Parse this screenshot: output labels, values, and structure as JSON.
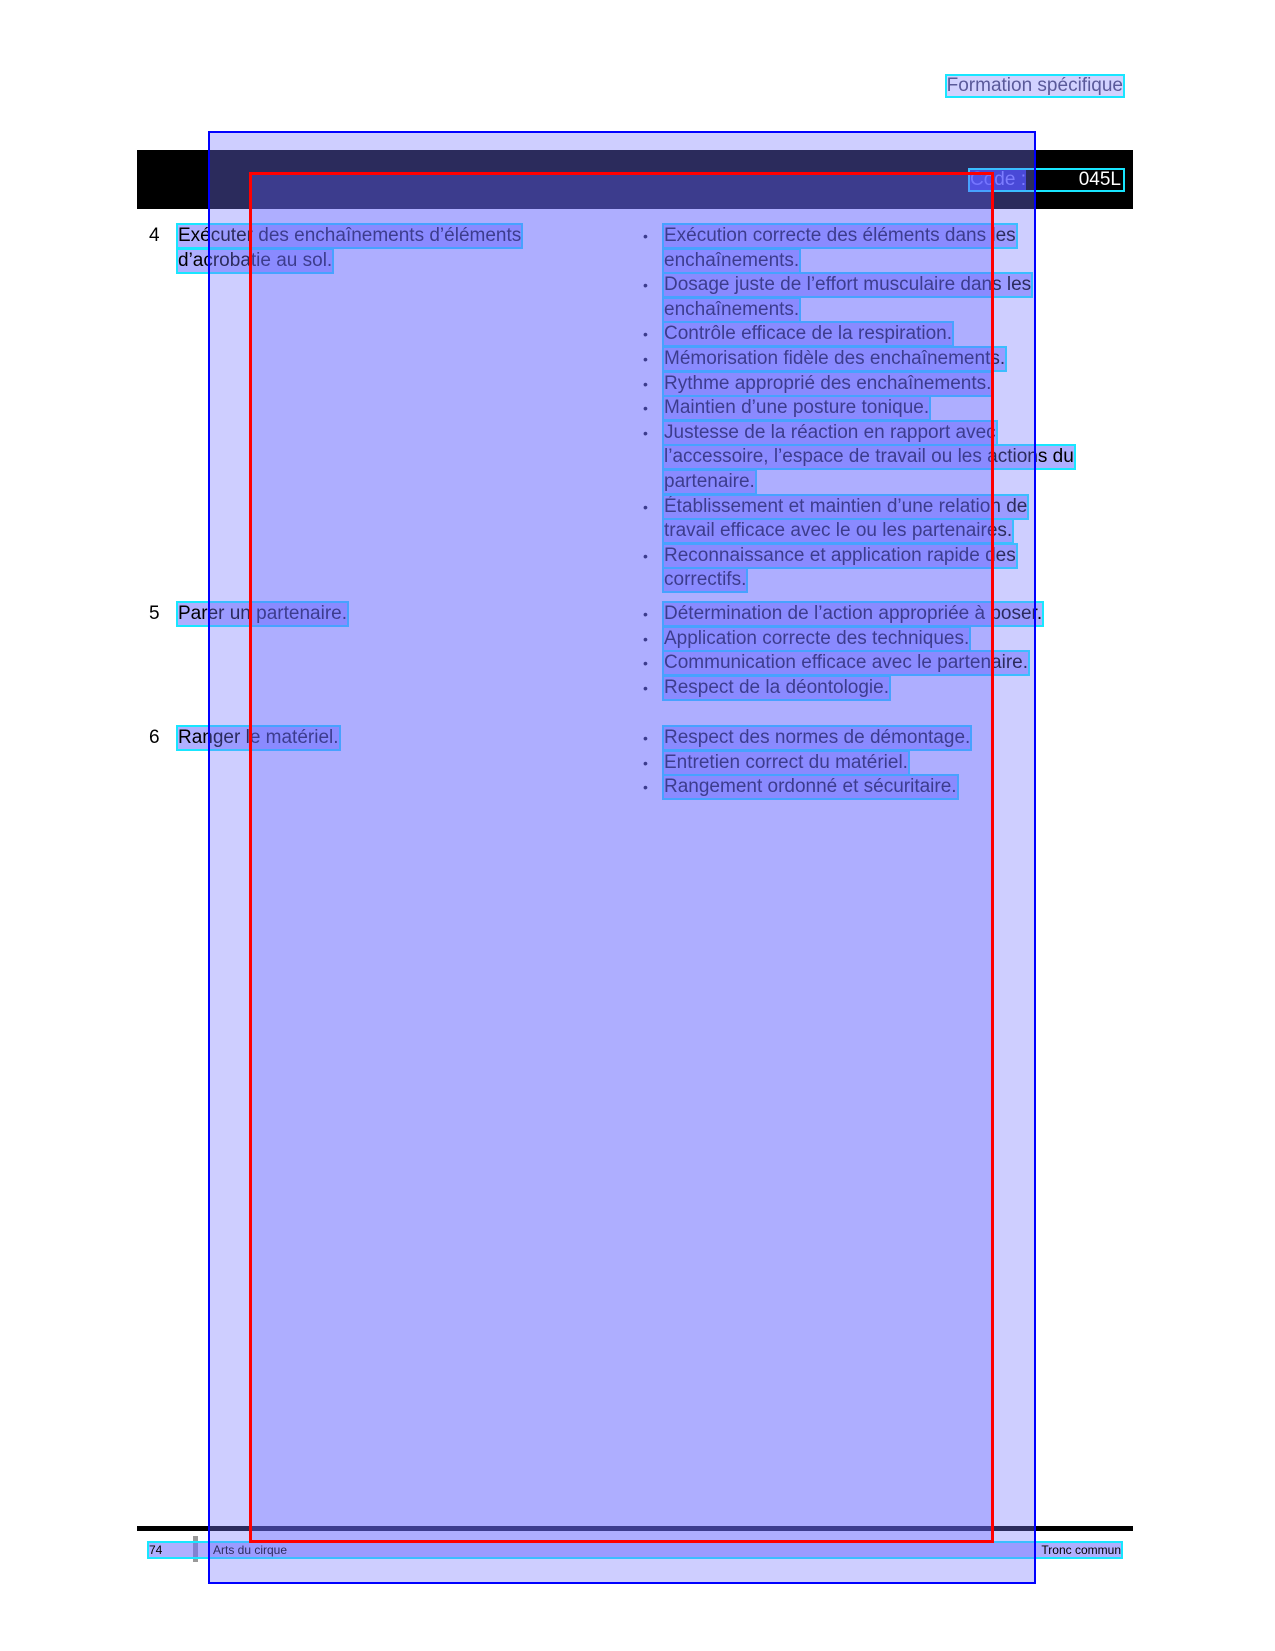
{
  "header": {
    "section": "Formation spécifique",
    "code_label": "Code :",
    "code_value": "045L"
  },
  "rows": [
    {
      "number": "4",
      "lines": [
        "Exécuter des enchaînements d’éléments",
        "d’acrobatie au sol."
      ],
      "criteria": [
        [
          "Exécution correcte des éléments dans les",
          "enchaînements."
        ],
        [
          "Dosage juste de l’effort musculaire dans les",
          "enchaînements."
        ],
        [
          "Contrôle efficace de la respiration."
        ],
        [
          "Mémorisation fidèle des enchaînements."
        ],
        [
          "Rythme approprié des enchaînements."
        ],
        [
          "Maintien d’une posture tonique."
        ],
        [
          "Justesse de la réaction en rapport avec",
          "l’accessoire, l’espace de travail ou les actions du",
          "partenaire."
        ],
        [
          "Établissement et maintien d’une relation de",
          "travail efficace avec le ou les partenaires."
        ],
        [
          "Reconnaissance et application rapide des",
          "correctifs."
        ]
      ]
    },
    {
      "number": "5",
      "lines": [
        "Parer un partenaire."
      ],
      "criteria": [
        [
          "Détermination de l’action appropriée à poser."
        ],
        [
          "Application correcte des techniques."
        ],
        [
          "Communication efficace avec le partenaire."
        ],
        [
          "Respect de la déontologie."
        ]
      ]
    },
    {
      "number": "6",
      "lines": [
        "Ranger le matériel."
      ],
      "criteria": [
        [
          "Respect des normes de démontage."
        ],
        [
          "Entretien correct du matériel."
        ],
        [
          "Rangement ordonné et sécuritaire."
        ]
      ]
    }
  ],
  "bullet_glyph": "•",
  "footer": {
    "page": "74",
    "left": "Arts du cirque",
    "right": "Tronc commun"
  },
  "colors": {
    "overlay_blue": "#0000ff",
    "overlay_red": "#ff0000",
    "highlight_cyan": "#19e6ff"
  }
}
